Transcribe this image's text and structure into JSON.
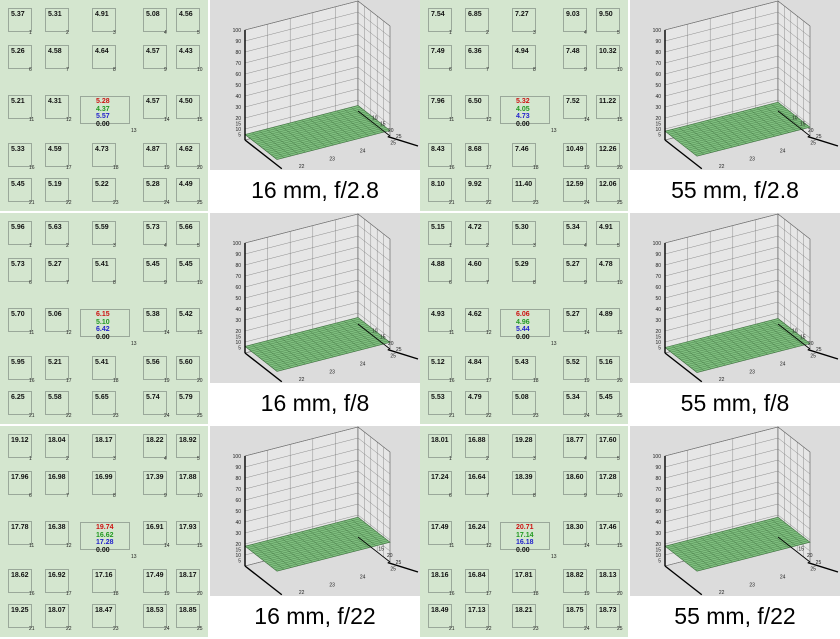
{
  "chart_data": [
    {
      "type": "heatmap",
      "caption": "16 mm, f/2.8",
      "grid_values": [
        [
          "5.37",
          "5.31",
          "4.91",
          "5.08",
          "4.56"
        ],
        [
          "5.26",
          "4.58",
          "4.64",
          "4.57",
          "4.43"
        ],
        [
          "5.21",
          "4.31",
          "",
          "4.57",
          "4.50"
        ],
        [
          "5.33",
          "4.59",
          "4.73",
          "4.87",
          "4.62"
        ],
        [
          "5.45",
          "5.19",
          "5.22",
          "5.28",
          "4.49"
        ]
      ],
      "center_values": [
        "5.28",
        "4.37",
        "5.57",
        "0.00"
      ],
      "cell_numbers": [
        "1",
        "2",
        "3",
        "4",
        "5",
        "6",
        "7",
        "8",
        "9",
        "10",
        "11",
        "12",
        "13",
        "14",
        "15",
        "16",
        "17",
        "18",
        "19",
        "20",
        "21",
        "22",
        "23",
        "24",
        "25"
      ],
      "surface": {
        "zlim": [
          0,
          100
        ],
        "z_ticks": [
          "100",
          "90",
          "80",
          "70",
          "60",
          "50",
          "40",
          "30",
          "20",
          "15",
          "10",
          "5"
        ],
        "x_ticks": [
          "22",
          "23",
          "24",
          "25"
        ],
        "y_ticks": [
          "10",
          "15",
          "20",
          "25"
        ],
        "surface_level": 5
      }
    },
    {
      "type": "heatmap",
      "caption": "55 mm, f/2.8",
      "grid_values": [
        [
          "7.54",
          "6.85",
          "7.27",
          "9.03",
          "9.50"
        ],
        [
          "7.49",
          "6.36",
          "4.94",
          "7.48",
          "10.32"
        ],
        [
          "7.96",
          "6.50",
          "",
          "7.52",
          "11.22"
        ],
        [
          "8.43",
          "8.68",
          "7.46",
          "10.49",
          "12.26"
        ],
        [
          "8.10",
          "9.92",
          "11.40",
          "12.59",
          "12.06"
        ]
      ],
      "center_values": [
        "5.32",
        "4.05",
        "4.73",
        "0.00"
      ],
      "cell_numbers": [
        "1",
        "2",
        "3",
        "4",
        "5",
        "6",
        "7",
        "8",
        "9",
        "10",
        "11",
        "12",
        "13",
        "14",
        "15",
        "16",
        "17",
        "18",
        "19",
        "20",
        "21",
        "22",
        "23",
        "24",
        "25"
      ],
      "surface": {
        "zlim": [
          0,
          100
        ],
        "z_ticks": [
          "100",
          "90",
          "80",
          "70",
          "60",
          "50",
          "40",
          "30",
          "20",
          "15",
          "10",
          "5"
        ],
        "x_ticks": [
          "22",
          "23",
          "24",
          "25"
        ],
        "y_ticks": [
          "10",
          "15",
          "20",
          "25"
        ],
        "surface_level": 8
      }
    },
    {
      "type": "heatmap",
      "caption": "16 mm, f/8",
      "grid_values": [
        [
          "5.96",
          "5.63",
          "5.59",
          "5.73",
          "5.66"
        ],
        [
          "5.73",
          "5.27",
          "5.41",
          "5.45",
          "5.45"
        ],
        [
          "5.70",
          "5.06",
          "",
          "5.38",
          "5.42"
        ],
        [
          "5.95",
          "5.21",
          "5.41",
          "5.56",
          "5.60"
        ],
        [
          "6.25",
          "5.58",
          "5.65",
          "5.74",
          "5.79"
        ]
      ],
      "center_values": [
        "6.15",
        "5.10",
        "6.42",
        "0.00"
      ],
      "cell_numbers": [
        "1",
        "2",
        "3",
        "4",
        "5",
        "6",
        "7",
        "8",
        "9",
        "10",
        "11",
        "12",
        "13",
        "14",
        "15",
        "16",
        "17",
        "18",
        "19",
        "20",
        "21",
        "22",
        "23",
        "24",
        "25"
      ],
      "surface": {
        "zlim": [
          0,
          100
        ],
        "z_ticks": [
          "100",
          "90",
          "80",
          "70",
          "60",
          "50",
          "40",
          "30",
          "20",
          "15",
          "10",
          "5"
        ],
        "x_ticks": [
          "22",
          "23",
          "24",
          "25"
        ],
        "y_ticks": [
          "10",
          "15",
          "20",
          "25"
        ],
        "surface_level": 6
      }
    },
    {
      "type": "heatmap",
      "caption": "55 mm, f/8",
      "grid_values": [
        [
          "5.15",
          "4.72",
          "5.30",
          "5.34",
          "4.91"
        ],
        [
          "4.88",
          "4.60",
          "5.29",
          "5.27",
          "4.78"
        ],
        [
          "4.93",
          "4.62",
          "",
          "5.27",
          "4.89"
        ],
        [
          "5.12",
          "4.84",
          "5.43",
          "5.52",
          "5.16"
        ],
        [
          "5.53",
          "4.79",
          "5.08",
          "5.34",
          "5.45"
        ]
      ],
      "center_values": [
        "6.06",
        "4.96",
        "5.44",
        "0.00"
      ],
      "cell_numbers": [
        "1",
        "2",
        "3",
        "4",
        "5",
        "6",
        "7",
        "8",
        "9",
        "10",
        "11",
        "12",
        "13",
        "14",
        "15",
        "16",
        "17",
        "18",
        "19",
        "20",
        "21",
        "22",
        "23",
        "24",
        "25"
      ],
      "surface": {
        "zlim": [
          0,
          100
        ],
        "z_ticks": [
          "100",
          "90",
          "80",
          "70",
          "60",
          "50",
          "40",
          "30",
          "20",
          "15",
          "10",
          "5"
        ],
        "x_ticks": [
          "22",
          "23",
          "24",
          "25"
        ],
        "y_ticks": [
          "10",
          "15",
          "20",
          "25"
        ],
        "surface_level": 5
      }
    },
    {
      "type": "heatmap",
      "caption": "16 mm, f/22",
      "grid_values": [
        [
          "19.12",
          "18.04",
          "18.17",
          "18.22",
          "18.92"
        ],
        [
          "17.96",
          "16.98",
          "16.99",
          "17.39",
          "17.88"
        ],
        [
          "17.78",
          "16.38",
          "",
          "16.91",
          "17.93"
        ],
        [
          "18.62",
          "16.92",
          "17.16",
          "17.49",
          "18.17"
        ],
        [
          "19.25",
          "18.07",
          "18.47",
          "18.53",
          "18.85"
        ]
      ],
      "center_values": [
        "19.74",
        "16.62",
        "17.28",
        "0.00"
      ],
      "cell_numbers": [
        "1",
        "2",
        "3",
        "4",
        "5",
        "6",
        "7",
        "8",
        "9",
        "10",
        "11",
        "12",
        "13",
        "14",
        "15",
        "16",
        "17",
        "18",
        "19",
        "20",
        "21",
        "22",
        "23",
        "24",
        "25"
      ],
      "surface": {
        "zlim": [
          0,
          100
        ],
        "z_ticks": [
          "100",
          "90",
          "80",
          "70",
          "60",
          "50",
          "40",
          "30",
          "20",
          "15",
          "10",
          "5"
        ],
        "x_ticks": [
          "22",
          "23",
          "24",
          "25"
        ],
        "y_ticks": [
          "15",
          "20",
          "25"
        ],
        "surface_level": 18
      }
    },
    {
      "type": "heatmap",
      "caption": "55 mm, f/22",
      "grid_values": [
        [
          "18.01",
          "16.88",
          "19.28",
          "18.77",
          "17.60"
        ],
        [
          "17.24",
          "16.64",
          "18.39",
          "18.60",
          "17.28"
        ],
        [
          "17.49",
          "16.24",
          "",
          "18.30",
          "17.46"
        ],
        [
          "18.16",
          "16.84",
          "17.81",
          "18.82",
          "18.13"
        ],
        [
          "18.49",
          "17.13",
          "18.21",
          "18.75",
          "18.73"
        ]
      ],
      "center_values": [
        "20.71",
        "17.14",
        "16.18",
        "0.00"
      ],
      "cell_numbers": [
        "1",
        "2",
        "3",
        "4",
        "5",
        "6",
        "7",
        "8",
        "9",
        "10",
        "11",
        "12",
        "13",
        "14",
        "15",
        "16",
        "17",
        "18",
        "19",
        "20",
        "21",
        "22",
        "23",
        "24",
        "25"
      ],
      "surface": {
        "zlim": [
          0,
          100
        ],
        "z_ticks": [
          "100",
          "90",
          "80",
          "70",
          "60",
          "50",
          "40",
          "30",
          "20",
          "15",
          "10",
          "5"
        ],
        "x_ticks": [
          "22",
          "23",
          "24",
          "25"
        ],
        "y_ticks": [
          "15",
          "20",
          "25"
        ],
        "surface_level": 18
      }
    }
  ],
  "colors": {
    "grid_bg": "#d4e6cf",
    "plot_bg": "#dcdcdc",
    "surface_fill": "#7fbf7f",
    "surface_line": "#3a6a3a",
    "red": "#cc1111",
    "green": "#229922",
    "blue": "#2222cc"
  }
}
